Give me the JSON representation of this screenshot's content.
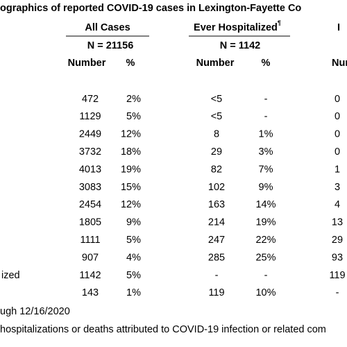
{
  "title": "ographics of reported COVID-19 cases in Lexington-Fayette Co",
  "table": {
    "groups": [
      {
        "label": "All Cases",
        "n": "N = 21156"
      },
      {
        "label": "Ever Hospitalized",
        "note": "¶",
        "n": "N = 1142"
      },
      {
        "label": "I"
      }
    ],
    "columns": [
      "Number",
      "%",
      "Number",
      "%",
      "Num"
    ],
    "rows": [
      {
        "cells": [
          "472",
          "2%",
          "<5",
          "-",
          "0"
        ]
      },
      {
        "cells": [
          "1129",
          "5%",
          "<5",
          "-",
          "0"
        ]
      },
      {
        "cells": [
          "2449",
          "12%",
          "8",
          "1%",
          "0"
        ]
      },
      {
        "cells": [
          "3732",
          "18%",
          "29",
          "3%",
          "0"
        ]
      },
      {
        "cells": [
          "4013",
          "19%",
          "82",
          "7%",
          "1"
        ]
      },
      {
        "cells": [
          "3083",
          "15%",
          "102",
          "9%",
          "3"
        ]
      },
      {
        "cells": [
          "2454",
          "12%",
          "163",
          "14%",
          "4"
        ]
      },
      {
        "cells": [
          "1805",
          "9%",
          "214",
          "19%",
          "13"
        ]
      },
      {
        "cells": [
          "1111",
          "5%",
          "247",
          "22%",
          "29"
        ]
      },
      {
        "cells": [
          "907",
          "4%",
          "285",
          "25%",
          "93"
        ]
      },
      {
        "label": "ized",
        "cells": [
          "1142",
          "5%",
          "-",
          "-",
          "119"
        ]
      },
      {
        "cells": [
          "143",
          "1%",
          "119",
          "10%",
          "-"
        ]
      }
    ]
  },
  "footnotes": [
    "ugh 12/16/2020",
    "hospitalizations or deaths attributed to COVID-19 infection or related com"
  ]
}
